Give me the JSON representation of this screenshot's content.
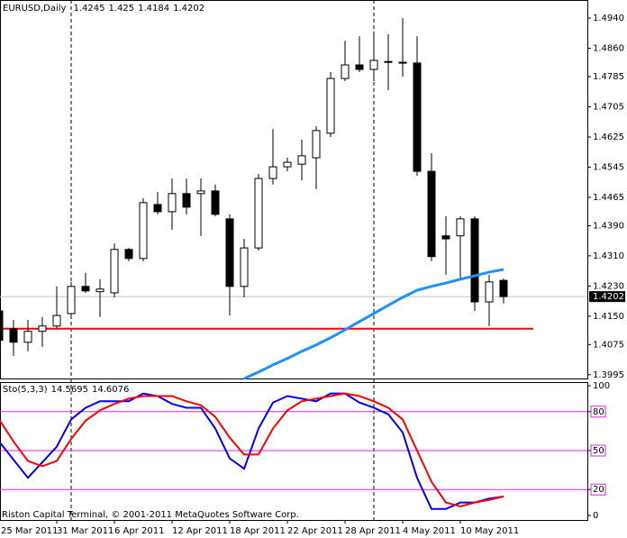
{
  "chart_data": [
    {
      "type": "candlestick",
      "title": "EURUSD,Daily",
      "categories": [
        "25 Mar 2011",
        null,
        null,
        null,
        "31 Mar 2011",
        null,
        null,
        null,
        "6 Apr 2011",
        null,
        null,
        null,
        "12 Apr 2011",
        null,
        null,
        null,
        "18 Apr 2011",
        null,
        null,
        null,
        "22 Apr 2011",
        null,
        null,
        null,
        "28 Apr 2011",
        null,
        null,
        null,
        "4 May 2011",
        null,
        null,
        null,
        "10 May 2011",
        null,
        null,
        null
      ],
      "open": [
        1.4164,
        1.4117,
        1.4081,
        1.411,
        1.4124,
        1.4157,
        1.4229,
        1.4215,
        1.4212,
        1.4327,
        1.4303,
        1.4446,
        1.4427,
        1.4475,
        1.4475,
        1.4482,
        1.4408,
        1.4229,
        1.4331,
        1.4515,
        1.4546,
        1.4553,
        1.457,
        1.4635,
        1.478,
        1.4816,
        1.4804,
        1.4825,
        1.4821,
        1.4821,
        1.4534,
        1.4363,
        1.4363,
        1.4408,
        1.4188,
        1.4245
      ],
      "high": [
        1.417,
        1.414,
        1.414,
        1.4148,
        1.4229,
        1.4241,
        1.4265,
        1.4248,
        1.4343,
        1.4331,
        1.4463,
        1.4479,
        1.4515,
        1.4515,
        1.4515,
        1.4499,
        1.442,
        1.4355,
        1.4527,
        1.4646,
        1.457,
        1.4618,
        1.4654,
        1.4797,
        1.488,
        1.4892,
        1.4904,
        1.4897,
        1.494,
        1.4892,
        1.4582,
        1.4415,
        1.4415,
        1.4415,
        1.426,
        1.425
      ],
      "low": [
        1.408,
        1.4045,
        1.4057,
        1.4069,
        1.4117,
        1.4152,
        1.4212,
        1.4148,
        1.42,
        1.4296,
        1.4296,
        1.442,
        1.4379,
        1.442,
        1.4363,
        1.4415,
        1.4152,
        1.42,
        1.4324,
        1.4499,
        1.4534,
        1.451,
        1.4487,
        1.4625,
        1.4773,
        1.4797,
        1.4773,
        1.4749,
        1.4785,
        1.4522,
        1.4296,
        1.426,
        1.4248,
        1.4164,
        1.4124,
        1.4184
      ],
      "close": [
        1.4086,
        1.4081,
        1.411,
        1.4124,
        1.4152,
        1.4229,
        1.4217,
        1.4222,
        1.4327,
        1.4303,
        1.4451,
        1.4427,
        1.4475,
        1.4439,
        1.4482,
        1.442,
        1.4229,
        1.4331,
        1.4515,
        1.4546,
        1.4558,
        1.4575,
        1.4642,
        1.478,
        1.4816,
        1.4804,
        1.4828,
        1.4823,
        1.4823,
        1.4534,
        1.4308,
        1.4355,
        1.4408,
        1.4188,
        1.4241,
        1.4202
      ],
      "up_color": "#ffffff",
      "down_color": "#000000",
      "ma": {
        "color": "#1e90ff",
        "values": [
          null,
          null,
          null,
          null,
          null,
          null,
          null,
          null,
          null,
          null,
          null,
          null,
          null,
          null,
          null,
          null,
          null,
          1.3985,
          1.4002,
          1.4021,
          1.4038,
          1.4057,
          1.4074,
          1.4093,
          1.4114,
          1.4136,
          1.4157,
          1.4179,
          1.42,
          1.4219,
          1.4229,
          1.4238,
          1.4248,
          1.4257,
          1.4267,
          1.4274
        ]
      },
      "hline": {
        "value": 1.4117,
        "color": "#ff0000"
      },
      "ylim": [
        1.3985,
        1.4988
      ],
      "yticks": [
        {
          "value": 1.494,
          "label": "1.4940"
        },
        {
          "value": 1.486,
          "label": "1.4860"
        },
        1.4785,
        1.4705,
        1.4625,
        1.4545,
        1.4465,
        {
          "value": 1.439,
          "label": "1.4390"
        },
        {
          "value": 1.431,
          "label": "1.4310"
        },
        {
          "value": 1.423,
          "label": "1.4230"
        },
        {
          "value": 1.415,
          "label": "1.4150"
        },
        1.4075,
        1.3995
      ],
      "footer": "Riston Capital Terminal, © 2001-2011 MetaQuotes Software Corp."
    },
    {
      "type": "line",
      "title": "Sto(5,3,3)",
      "series": [
        {
          "color": "#0000ff",
          "values": [
            57,
            43,
            29,
            41,
            53,
            74,
            83,
            88,
            88,
            88,
            94,
            92,
            86,
            83,
            83,
            67,
            44,
            36,
            67,
            87,
            92,
            90,
            88,
            94,
            94,
            87,
            83,
            78,
            64,
            29,
            5,
            5,
            10,
            10,
            13,
            14.5695
          ]
        },
        {
          "color": "#ff0000",
          "values": [
            74,
            57,
            42,
            38,
            42,
            59,
            73,
            81,
            86,
            90,
            92,
            92,
            92,
            88,
            85,
            76,
            60,
            47,
            47,
            67,
            81,
            88,
            90,
            92,
            94,
            92,
            88,
            83,
            74,
            50,
            26,
            10,
            7,
            10,
            12,
            14.6076
          ]
        }
      ],
      "levels": [
        20,
        50,
        80
      ],
      "level_color": "#e020e0",
      "ylim": [
        0,
        100
      ],
      "yticks": [
        0,
        20,
        50,
        80,
        100
      ]
    }
  ]
}
